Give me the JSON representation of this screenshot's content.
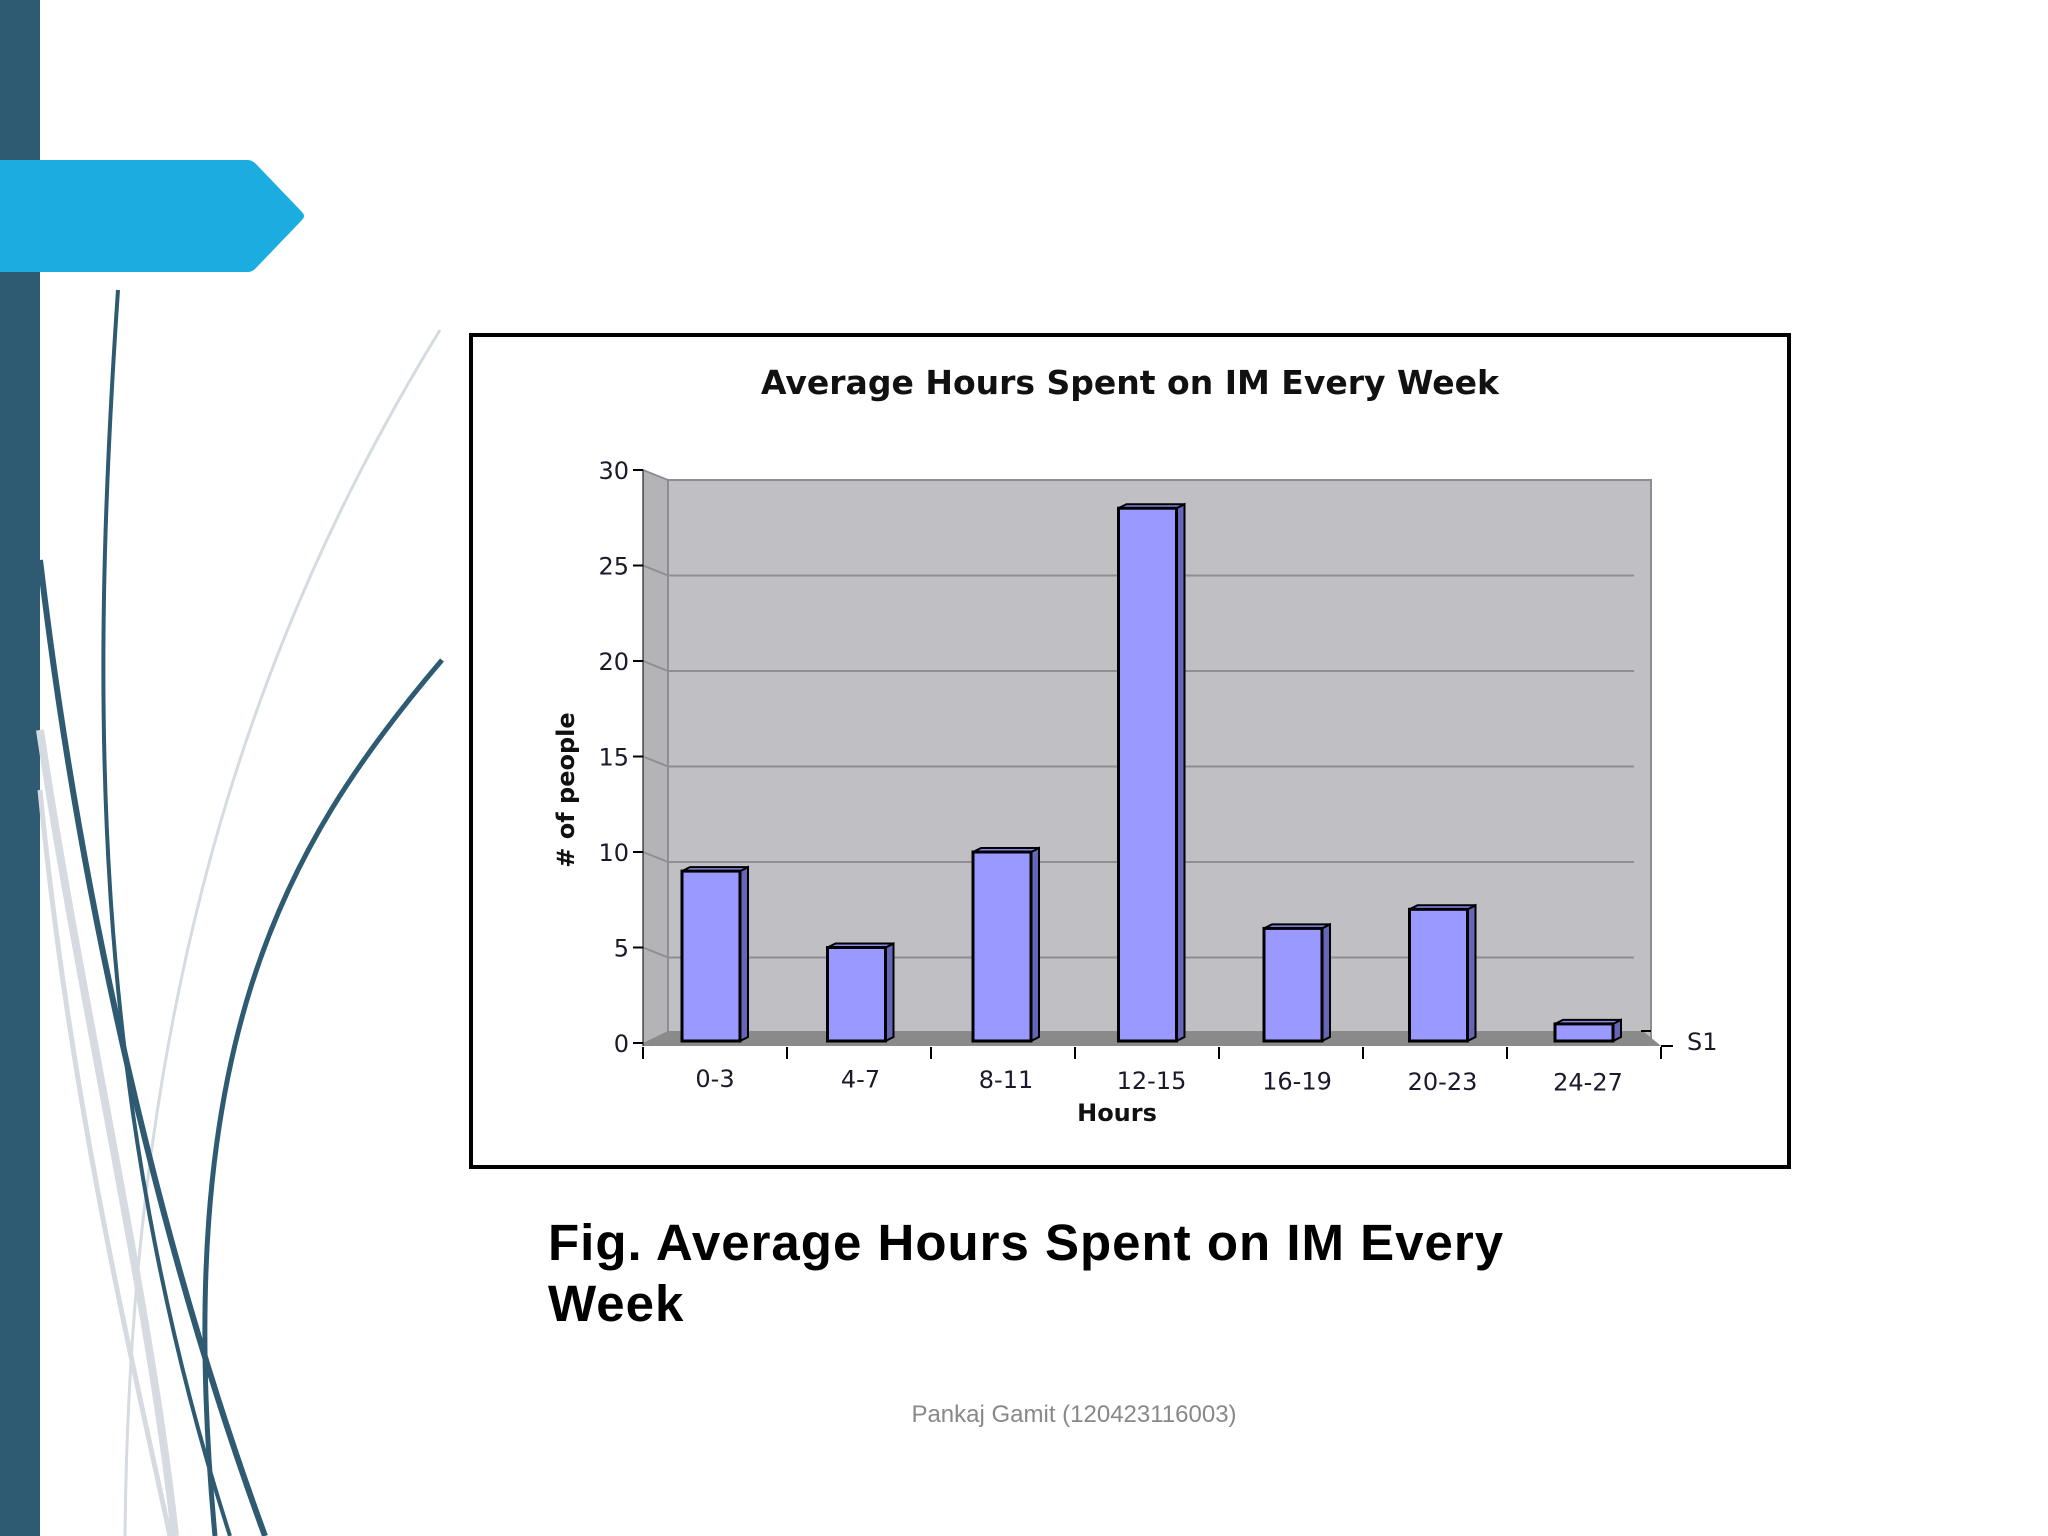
{
  "slide": {
    "caption": "Fig. Average Hours Spent on IM Every Week",
    "footer": "Pankaj Gamit (120423116003)",
    "colors": {
      "sidebar_bar": "#2e5a72",
      "arrow_tab": "#1cade0",
      "curve_dark": "#2e5a72",
      "curve_light": "#d5dbe0",
      "bar_fill": "#9999ff",
      "bar_side": "#6666b8",
      "plot_wall": "#c0bfc4",
      "plot_floor": "#8a8a8a"
    }
  },
  "chart_data": {
    "type": "bar",
    "title": "Average Hours Spent on IM Every Week",
    "xlabel": "Hours",
    "ylabel": "# of people",
    "categories": [
      "0-3",
      "4-7",
      "8-11",
      "12-15",
      "16-19",
      "20-23",
      "24-27"
    ],
    "series": [
      {
        "name": "S1",
        "values": [
          9,
          5,
          10,
          28,
          6,
          7,
          1
        ]
      }
    ],
    "ylim": [
      0,
      30
    ],
    "yticks": [
      0,
      5,
      10,
      15,
      20,
      25,
      30
    ],
    "grid": true,
    "style": "3d-column",
    "legend": {
      "position": "right-depth-axis",
      "entries": [
        "S1"
      ]
    }
  }
}
